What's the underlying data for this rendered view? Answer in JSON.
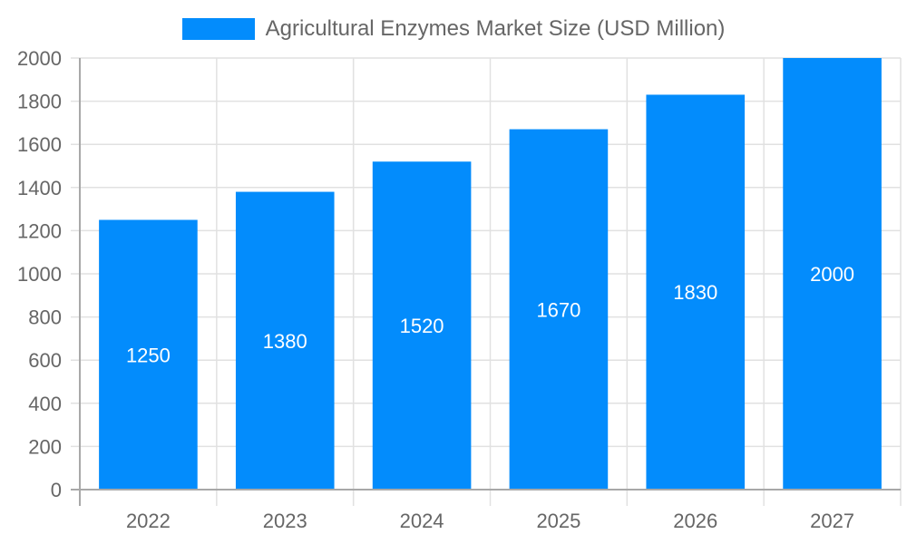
{
  "chart_data": {
    "type": "bar",
    "title": "",
    "legend": [
      {
        "label": "Agricultural Enzymes Market Size (USD Million)",
        "color": "#038cfc"
      }
    ],
    "legend_position": "top",
    "categories": [
      "2022",
      "2023",
      "2024",
      "2025",
      "2026",
      "2027"
    ],
    "series": [
      {
        "name": "Agricultural Enzymes Market Size (USD Million)",
        "values": [
          1250,
          1380,
          1520,
          1670,
          1830,
          2000
        ],
        "color": "#038cfc"
      }
    ],
    "xlabel": "",
    "ylabel": "",
    "ylim": [
      0,
      2000
    ],
    "yticks": [
      0,
      200,
      400,
      600,
      800,
      1000,
      1200,
      1400,
      1600,
      1800,
      2000
    ],
    "grid": true,
    "data_labels": true
  },
  "legend": {
    "label": "Agricultural Enzymes Market Size (USD Million)",
    "color": "#038cfc"
  }
}
